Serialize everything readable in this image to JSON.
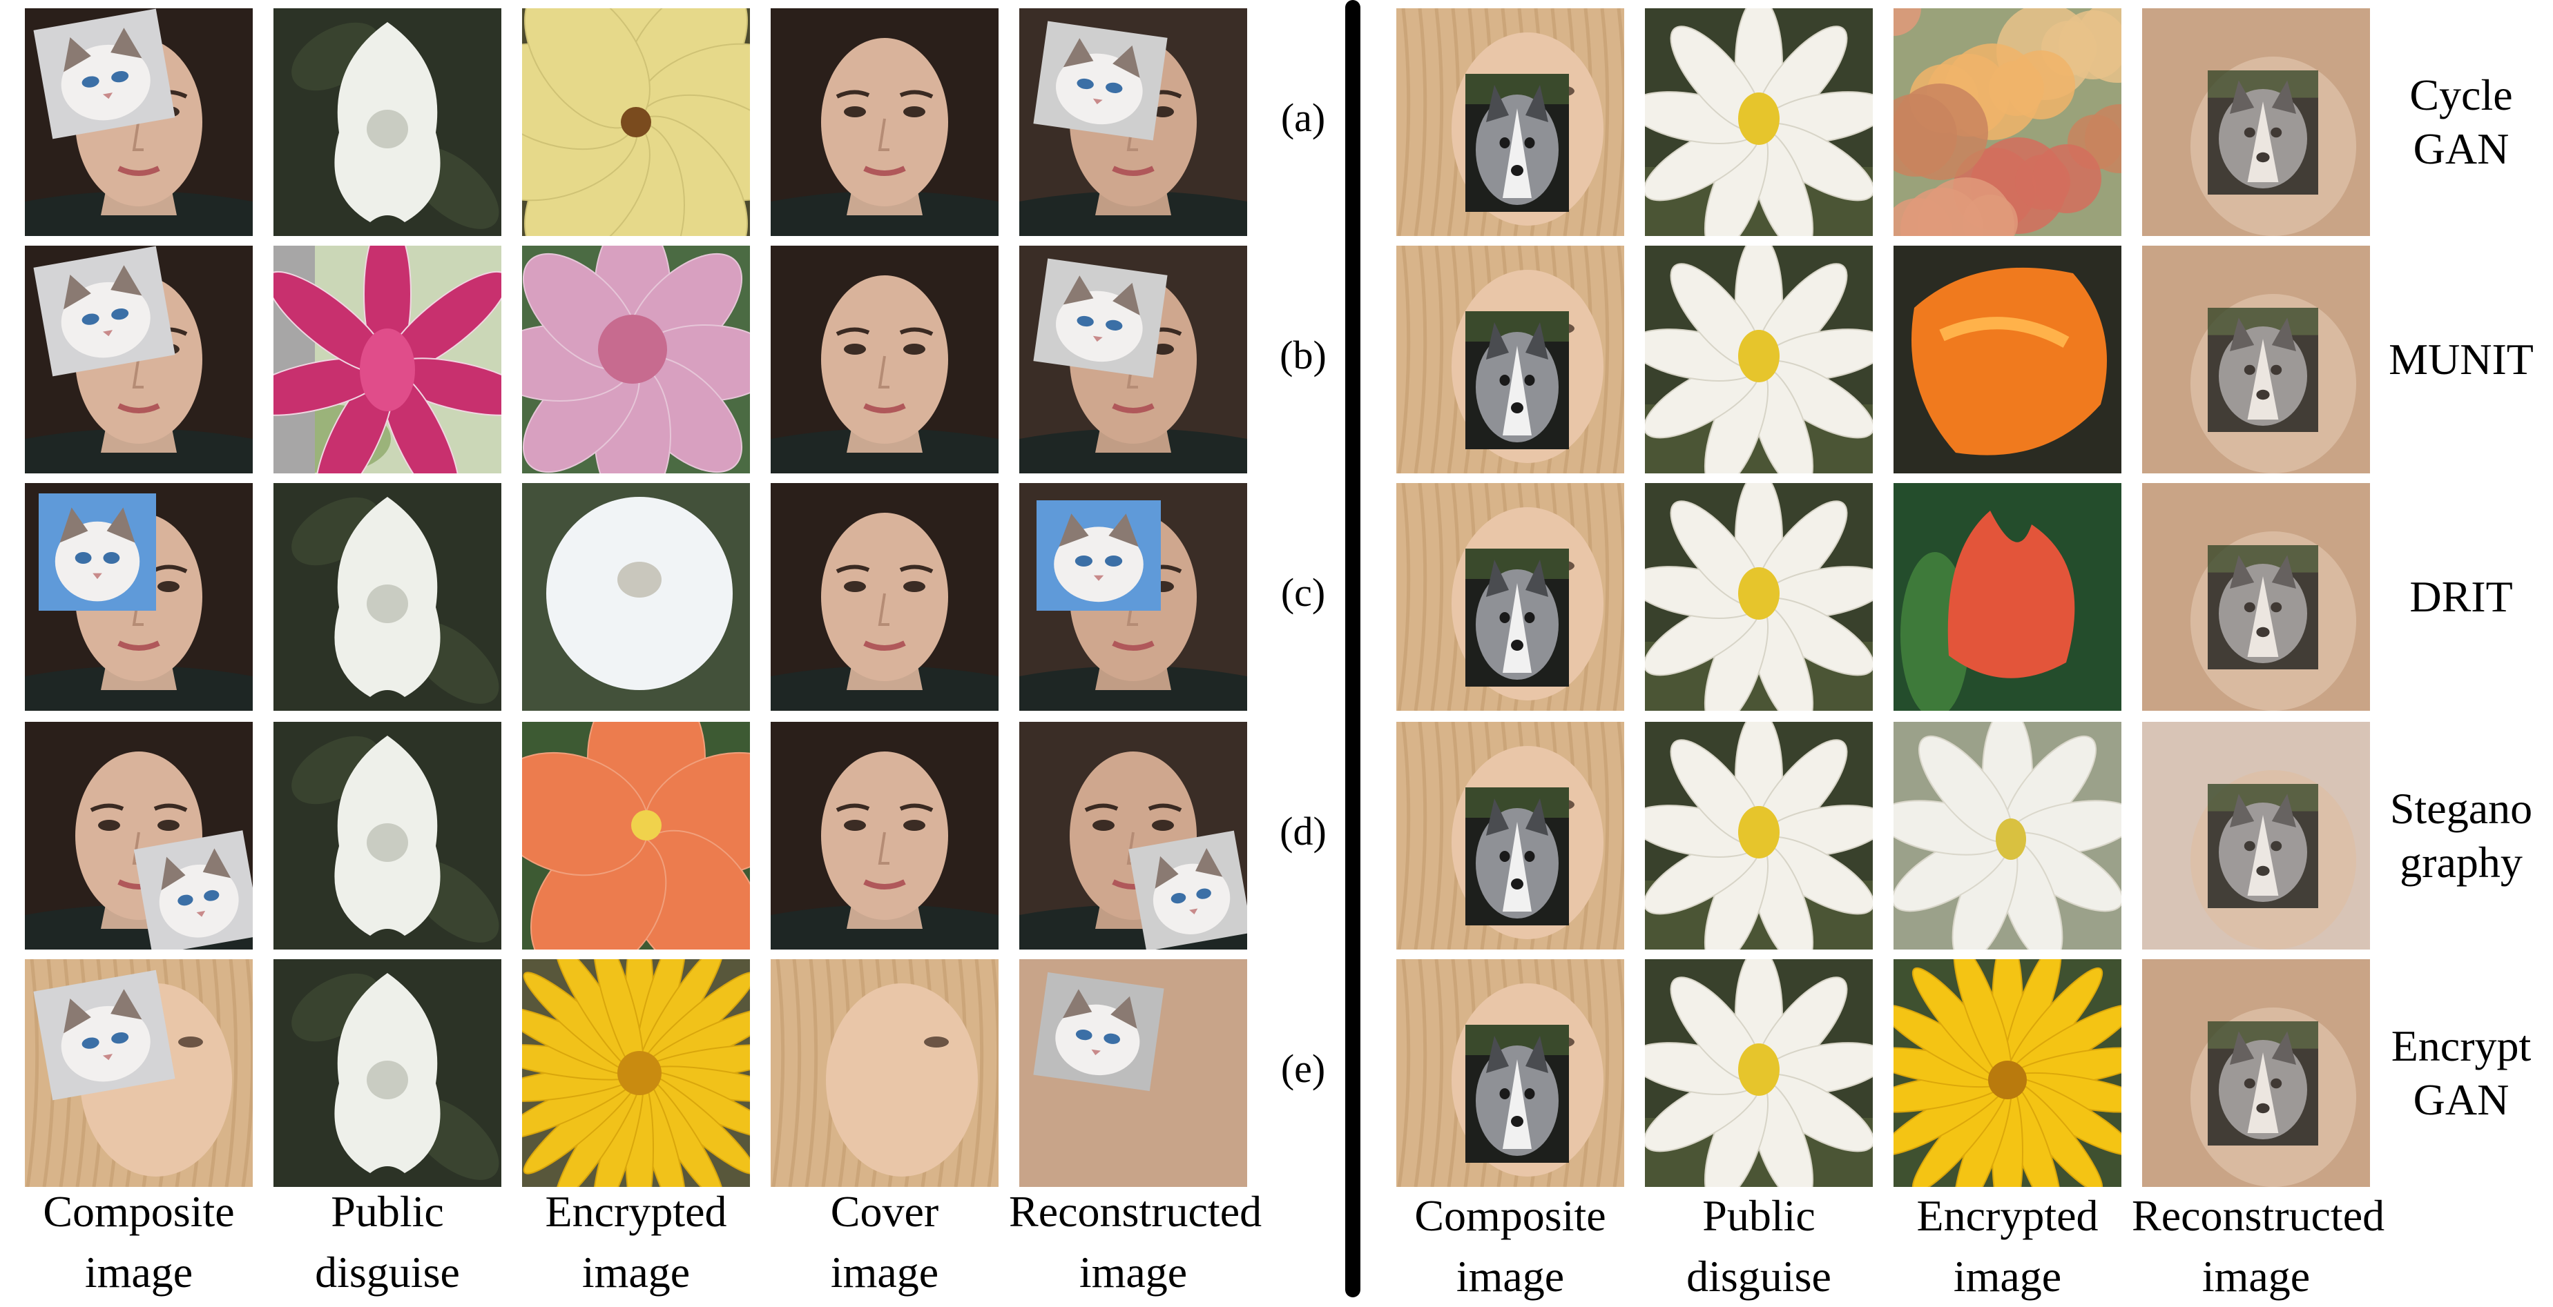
{
  "left_panel": {
    "row_labels": [
      "(a)",
      "(b)",
      "(c)",
      "(d)",
      "(e)"
    ],
    "column_labels": [
      [
        "Composite",
        "image"
      ],
      [
        "Public",
        "disguise"
      ],
      [
        "Encrypted",
        "image"
      ],
      [
        "Cover",
        "image"
      ],
      [
        "Reconstructed",
        "image"
      ]
    ]
  },
  "right_panel": {
    "method_labels": [
      [
        "Cycle",
        "GAN"
      ],
      [
        "MUNIT"
      ],
      [
        "DRIT"
      ],
      [
        "Stegano",
        "graphy"
      ],
      [
        "Encrypt",
        "GAN"
      ]
    ],
    "column_labels": [
      [
        "Composite",
        "image"
      ],
      [
        "Public",
        "disguise"
      ],
      [
        "Encrypted",
        "image"
      ],
      [
        "Reconstructed",
        "image"
      ]
    ]
  },
  "colors": {
    "brunette_hair": "#2a1f1a",
    "brunette_skin": "#d9b39b",
    "blonde_hair": "#d8b48a",
    "blonde_skin": "#e9c6a8",
    "dark_foliage": "#2c3326",
    "white_petal": "#eef0ea",
    "yellow_flower": "#e6d98a",
    "pink_lotus": "#c8306e",
    "light_pink": "#d8a0c0",
    "orange_hibiscus": "#ec7c4e",
    "golden_flower": "#f1c21a",
    "cycle_mottle": "#d88a6a",
    "orange_blob": "#f07a1e",
    "red_tulip": "#e3553a",
    "cat_grey": "#d4d4d6",
    "husky_grey": "#8f9196",
    "sky_blue": "#5f9ad9"
  }
}
